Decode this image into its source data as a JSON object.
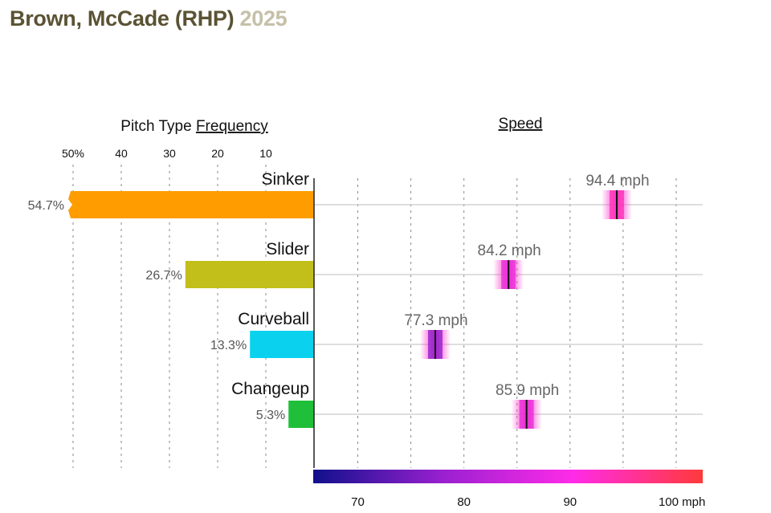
{
  "title": {
    "name": "Brown, McCade (RHP)",
    "year": "2025"
  },
  "chart_data": [
    {
      "type": "bar",
      "title": "Pitch Type Frequency",
      "title_prefix": "Pitch Type",
      "title_underlined": "Frequency",
      "orientation": "horizontal-leftward",
      "categories": [
        "Sinker",
        "Slider",
        "Curveball",
        "Changeup"
      ],
      "values": [
        54.7,
        26.7,
        13.3,
        5.3
      ],
      "value_labels": [
        "54.7%",
        "26.7%",
        "13.3%",
        "5.3%"
      ],
      "colors": [
        "#ff9d00",
        "#c2bf1a",
        "#0ad2ee",
        "#1fbf3a"
      ],
      "xlim": [
        0,
        50
      ],
      "ticks": [
        10,
        20,
        30,
        40,
        50
      ],
      "tick_labels": [
        "10",
        "20",
        "30",
        "40",
        "50%"
      ],
      "bar_clipped": [
        true,
        false,
        false,
        false
      ],
      "grid": true
    },
    {
      "type": "scatter",
      "title": "Speed",
      "categories": [
        "Sinker",
        "Slider",
        "Curveball",
        "Changeup"
      ],
      "values": [
        94.4,
        84.2,
        77.3,
        85.9
      ],
      "value_labels": [
        "94.4 mph",
        "84.2 mph",
        "77.3 mph",
        "85.9 mph"
      ],
      "xlim": [
        65.8,
        102.5
      ],
      "ticks": [
        70,
        80,
        90,
        100
      ],
      "tick_labels": [
        "70",
        "80",
        "90",
        "100 mph"
      ],
      "minor_grid": [
        75,
        85,
        95
      ],
      "color_scale": [
        "#10108c",
        "#9a20d0",
        "#ff2be8",
        "#ff3a3a"
      ],
      "grid": true
    }
  ]
}
